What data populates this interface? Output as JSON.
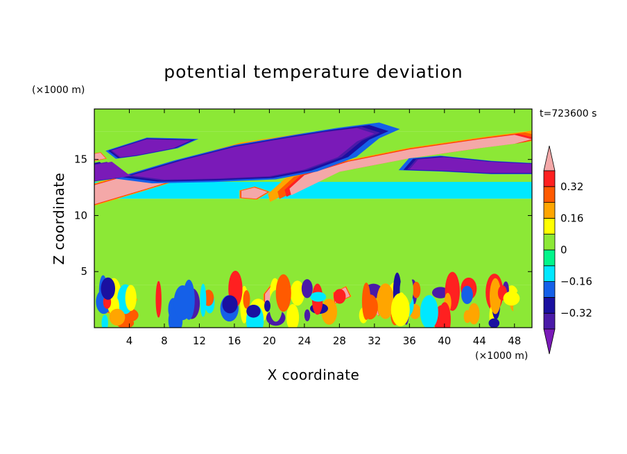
{
  "chart_data": {
    "type": "heatmap",
    "title": "potential temperature deviation",
    "xlabel": "X coordinate",
    "ylabel": "Z coordinate",
    "x_unit": "(×1000 m)",
    "y_unit": "(×1000 m)",
    "time_label": "t=723600 s",
    "xlim": [
      0,
      50
    ],
    "ylim": [
      0,
      19.5
    ],
    "x_ticks": [
      4,
      8,
      12,
      16,
      20,
      24,
      28,
      32,
      36,
      40,
      44,
      48
    ],
    "y_ticks": [
      5,
      10,
      15
    ],
    "colorbar": {
      "levels": [
        -0.4,
        -0.32,
        -0.24,
        -0.16,
        -0.08,
        0,
        0.08,
        0.16,
        0.24,
        0.32,
        0.4
      ],
      "labels": [
        "0.32",
        "0.16",
        "0",
        "−0.16",
        "−0.32"
      ],
      "label_values": [
        0.32,
        0.16,
        0,
        -0.16,
        -0.32
      ],
      "colors": [
        "#7a1ab8",
        "#4a1aa8",
        "#1a10a0",
        "#1560e8",
        "#00e8ff",
        "#00f58a",
        "#8ce836",
        "#ffff00",
        "#ffa500",
        "#ff5a00",
        "#ff2020",
        "#f4a8a8"
      ]
    },
    "regions": [
      {
        "level": 0.4,
        "poly": [
          [
            0,
            11
          ],
          [
            6,
            12.4
          ],
          [
            14,
            14.3
          ],
          [
            22,
            15.9
          ],
          [
            24,
            16.6
          ],
          [
            22,
            16.9
          ],
          [
            16,
            16.2
          ],
          [
            10,
            14.9
          ],
          [
            4,
            13.6
          ],
          [
            0,
            12.7
          ]
        ]
      },
      {
        "level": 0.4,
        "poly": [
          [
            22.5,
            11.8
          ],
          [
            28,
            13.9
          ],
          [
            36,
            15.1
          ],
          [
            44,
            16
          ],
          [
            48,
            16.4
          ],
          [
            50,
            16.8
          ],
          [
            48,
            17.2
          ],
          [
            44,
            16.8
          ],
          [
            36,
            15.9
          ],
          [
            29,
            14.8
          ],
          [
            24,
            13.6
          ],
          [
            22.3,
            12.4
          ]
        ]
      },
      {
        "level": 0.4,
        "poly": [
          [
            16.8,
            11.6
          ],
          [
            18.5,
            11.5
          ],
          [
            19.8,
            12.1
          ],
          [
            18.3,
            12.5
          ],
          [
            16.8,
            12.2
          ]
        ]
      },
      {
        "level": 0.4,
        "poly": [
          [
            1.3,
            1.5
          ],
          [
            3.5,
            1.2
          ],
          [
            4.6,
            2.5
          ],
          [
            3.4,
            3.6
          ],
          [
            2,
            3.2
          ],
          [
            1.2,
            2.5
          ]
        ]
      },
      {
        "level": 0.4,
        "poly": [
          [
            19.5,
            2.2
          ],
          [
            21.5,
            2.6
          ],
          [
            22.2,
            3.6
          ],
          [
            20.3,
            3.8
          ],
          [
            19.5,
            3
          ]
        ]
      },
      {
        "level": 0.4,
        "poly": [
          [
            27.5,
            2.2
          ],
          [
            29.2,
            2.8
          ],
          [
            28.7,
            3.6
          ],
          [
            27.4,
            3.1
          ]
        ]
      },
      {
        "level": 0.4,
        "poly": [
          [
            31.7,
            1
          ],
          [
            32.5,
            1.1
          ],
          [
            32.3,
            1.8
          ],
          [
            31.6,
            1.6
          ]
        ]
      },
      {
        "level": 0.4,
        "poly": [
          [
            0,
            14.9
          ],
          [
            1.3,
            15.1
          ],
          [
            0.7,
            15.6
          ],
          [
            0,
            15.5
          ]
        ]
      },
      {
        "level": -0.4,
        "poly": [
          [
            0,
            13.1
          ],
          [
            4,
            13.5
          ],
          [
            10,
            14.9
          ],
          [
            16,
            16.1
          ],
          [
            22,
            16.9
          ],
          [
            26,
            17.4
          ],
          [
            30,
            17.8
          ],
          [
            32,
            17.3
          ],
          [
            30,
            16.6
          ],
          [
            27.8,
            15.2
          ],
          [
            24,
            14.1
          ],
          [
            20,
            13.5
          ],
          [
            14,
            13.3
          ],
          [
            8,
            13.2
          ],
          [
            4,
            13.6
          ],
          [
            2,
            14.8
          ],
          [
            0,
            14.5
          ]
        ]
      },
      {
        "level": -0.4,
        "poly": [
          [
            2,
            15.8
          ],
          [
            6,
            16.8
          ],
          [
            11,
            16.7
          ],
          [
            9,
            16
          ],
          [
            5,
            15.4
          ],
          [
            3,
            15.2
          ]
        ]
      },
      {
        "level": -0.4,
        "poly": [
          [
            36,
            14.1
          ],
          [
            40,
            14
          ],
          [
            45,
            13.8
          ],
          [
            50,
            13.8
          ],
          [
            50,
            14.6
          ],
          [
            45,
            14.8
          ],
          [
            40,
            15.2
          ],
          [
            37,
            15
          ]
        ]
      },
      {
        "level": 0.0,
        "poly": [
          [
            0,
            3.8
          ],
          [
            50,
            3.8
          ],
          [
            50,
            0
          ],
          [
            0,
            0
          ]
        ]
      }
    ]
  }
}
